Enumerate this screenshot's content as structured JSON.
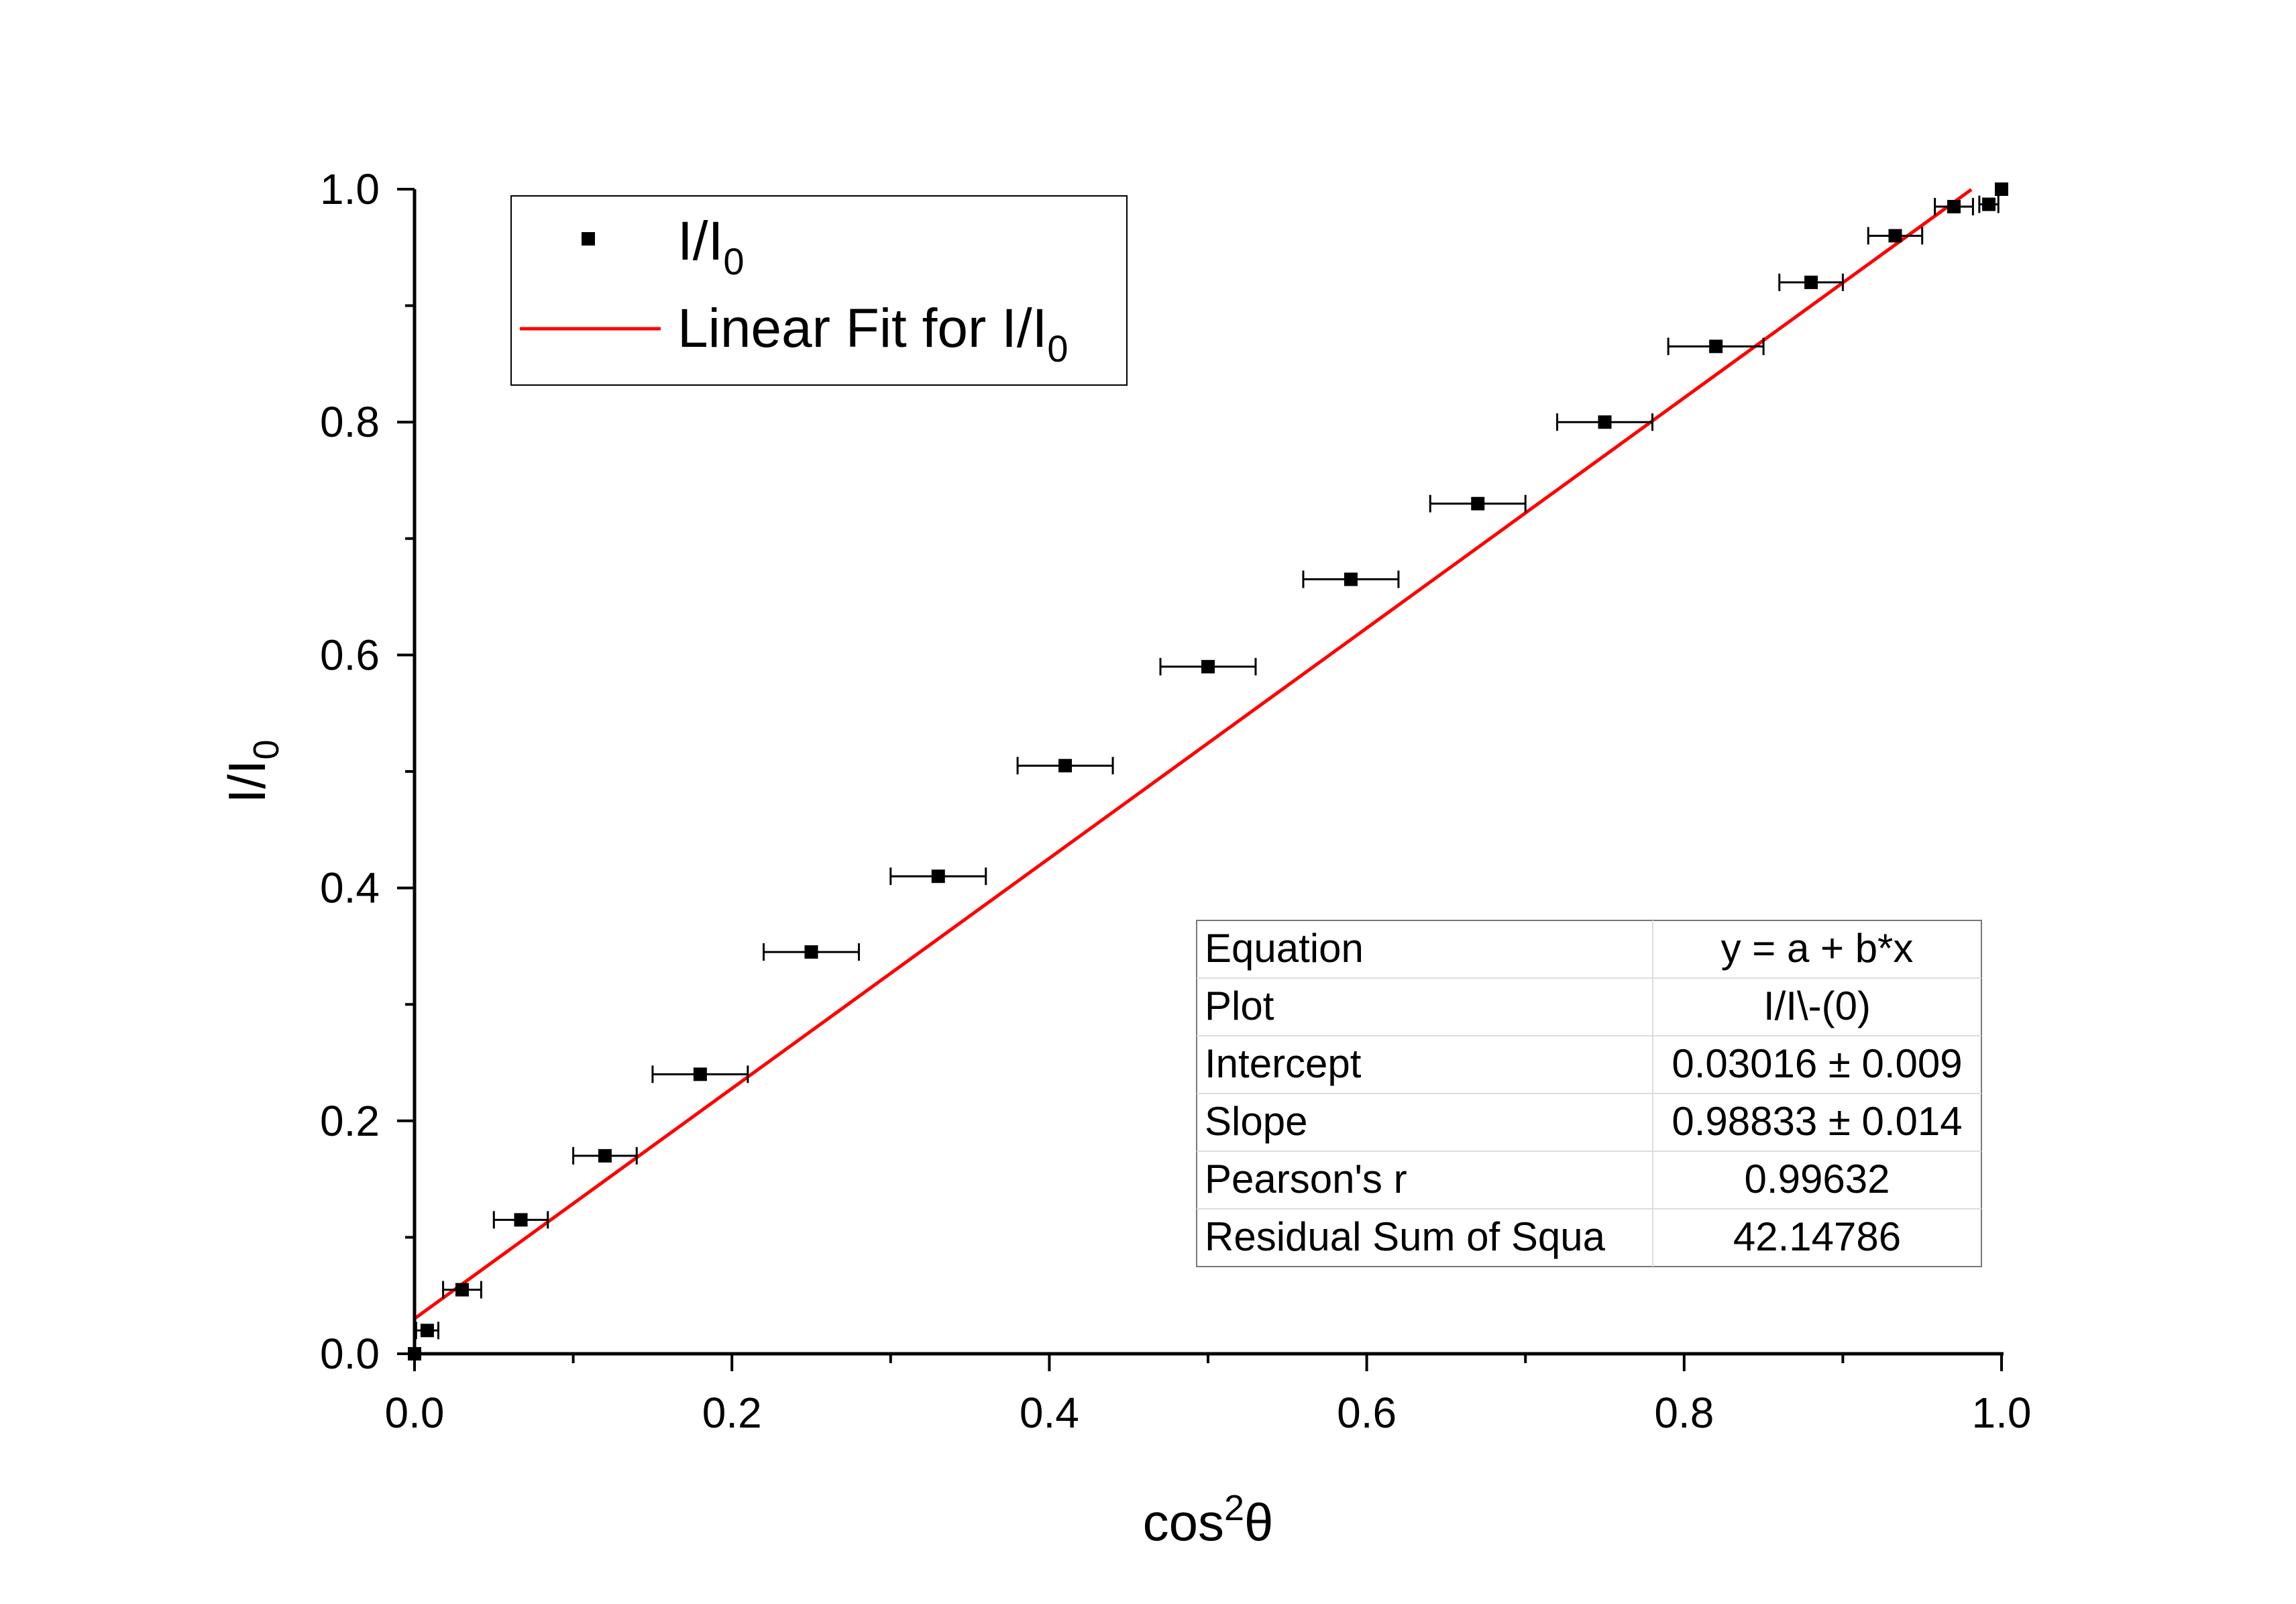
{
  "chart_data": {
    "type": "scatter",
    "xlabel": {
      "main": "cos",
      "sup": "2",
      "suffix": "θ"
    },
    "ylabel": {
      "main": "I/I",
      "sub": "0"
    },
    "xlim": [
      0,
      1
    ],
    "ylim": [
      0,
      1
    ],
    "x_ticks": [
      "0.0",
      "0.2",
      "0.4",
      "0.6",
      "0.8",
      "1.0"
    ],
    "y_ticks": [
      "0.0",
      "0.2",
      "0.4",
      "0.6",
      "0.8",
      "1.0"
    ],
    "grid": false,
    "legend": {
      "placement": "top-left",
      "entries": [
        {
          "label": "I/I",
          "sub": "0",
          "marker": "square",
          "color": "#000000"
        },
        {
          "label": "Linear Fit for I/I",
          "sub": "0",
          "marker": "line",
          "color": "#ff0000"
        }
      ]
    },
    "series": [
      {
        "name": "I/I0",
        "color": "#000000",
        "points": [
          {
            "x": 0.0,
            "y": 0.0,
            "xerr": 0.0
          },
          {
            "x": 0.008,
            "y": 0.02,
            "xerr": 0.007
          },
          {
            "x": 0.03,
            "y": 0.055,
            "xerr": 0.012
          },
          {
            "x": 0.067,
            "y": 0.115,
            "xerr": 0.017
          },
          {
            "x": 0.12,
            "y": 0.17,
            "xerr": 0.02
          },
          {
            "x": 0.18,
            "y": 0.24,
            "xerr": 0.03
          },
          {
            "x": 0.25,
            "y": 0.345,
            "xerr": 0.03
          },
          {
            "x": 0.33,
            "y": 0.41,
            "xerr": 0.03
          },
          {
            "x": 0.41,
            "y": 0.505,
            "xerr": 0.03
          },
          {
            "x": 0.5,
            "y": 0.59,
            "xerr": 0.03
          },
          {
            "x": 0.59,
            "y": 0.665,
            "xerr": 0.03
          },
          {
            "x": 0.67,
            "y": 0.73,
            "xerr": 0.03
          },
          {
            "x": 0.75,
            "y": 0.8,
            "xerr": 0.03
          },
          {
            "x": 0.82,
            "y": 0.865,
            "xerr": 0.03
          },
          {
            "x": 0.88,
            "y": 0.92,
            "xerr": 0.02
          },
          {
            "x": 0.933,
            "y": 0.96,
            "xerr": 0.017
          },
          {
            "x": 0.97,
            "y": 0.985,
            "xerr": 0.012
          },
          {
            "x": 0.992,
            "y": 0.987,
            "xerr": 0.006
          },
          {
            "x": 1.0,
            "y": 1.0,
            "xerr": 0.0
          }
        ]
      },
      {
        "name": "Linear Fit for I/I0",
        "type": "line",
        "color": "#ff0000",
        "intercept": 0.03016,
        "slope": 0.98833,
        "x_range": [
          0,
          0.981
        ]
      }
    ],
    "stats_table": [
      [
        "Equation",
        "y = a + b*x"
      ],
      [
        "Plot",
        "I/I\\-(0)"
      ],
      [
        "Intercept",
        "0.03016 ± 0.009"
      ],
      [
        "Slope",
        "0.98833 ± 0.014"
      ],
      [
        "Pearson's r",
        "0.99632"
      ],
      [
        "Residual Sum of Squa",
        "42.14786"
      ]
    ]
  }
}
